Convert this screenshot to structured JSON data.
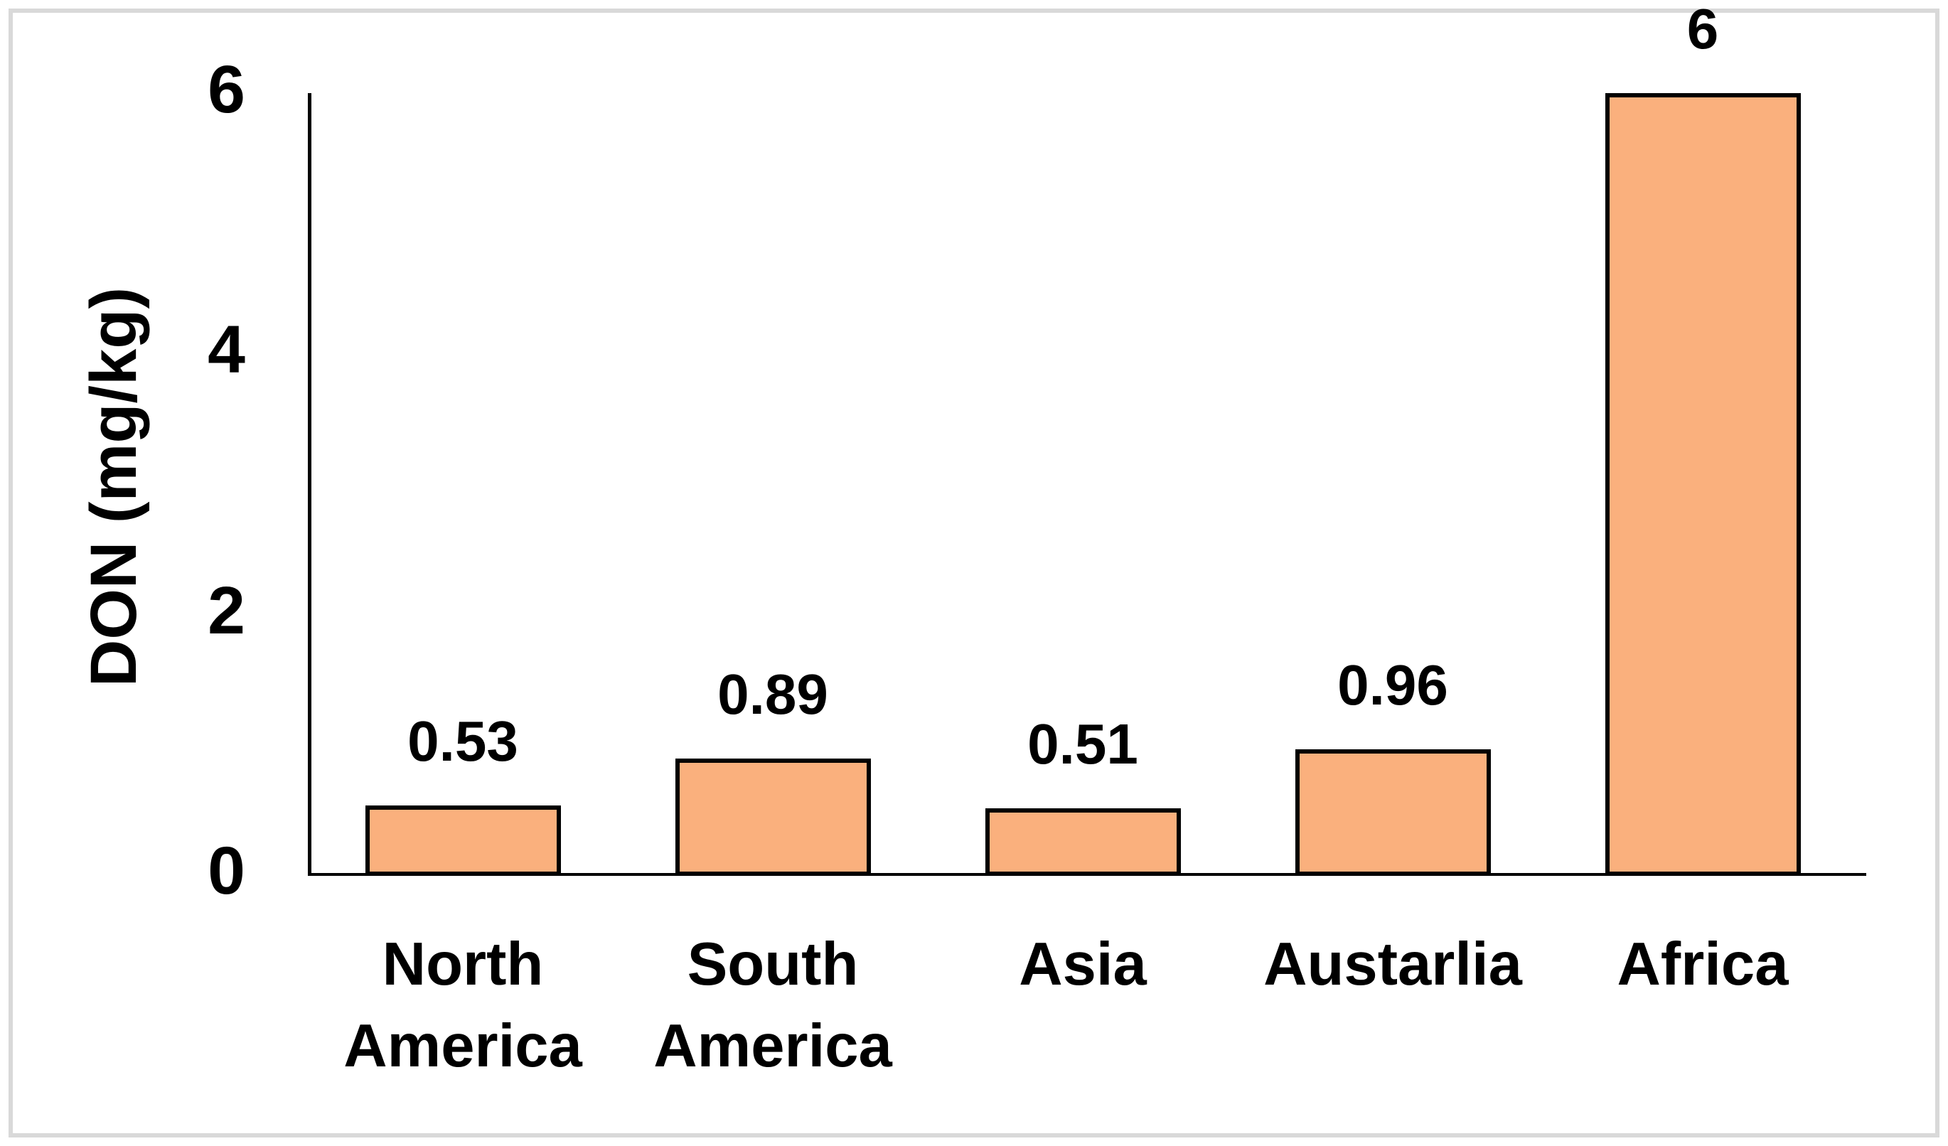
{
  "chart_data": {
    "type": "bar",
    "title": "",
    "categories": [
      "North America",
      "South America",
      "Asia",
      "Austarlia",
      "Africa"
    ],
    "categories_lines": [
      [
        "North",
        "America"
      ],
      [
        "South",
        "America"
      ],
      [
        "Asia"
      ],
      [
        "Austarlia"
      ],
      [
        "Africa"
      ]
    ],
    "values": [
      0.53,
      0.89,
      0.51,
      0.96,
      6
    ],
    "value_labels": [
      "0.53",
      "0.89",
      "0.51",
      "0.96",
      "6"
    ],
    "xlabel": "",
    "ylabel": "DON (mg/kg)",
    "ylim": [
      0,
      6
    ],
    "yticks": [
      0,
      2,
      4,
      6
    ],
    "ytick_labels": [
      "0",
      "2",
      "4",
      "6"
    ],
    "grid": false,
    "legend": false,
    "bar_fill_color": "#FAB07D",
    "bar_border_color": "#000000",
    "axis_color": "#000000",
    "text_color": "#000000",
    "frame_border_color": "#D9D9D9",
    "background_color": "#FFFFFF"
  }
}
